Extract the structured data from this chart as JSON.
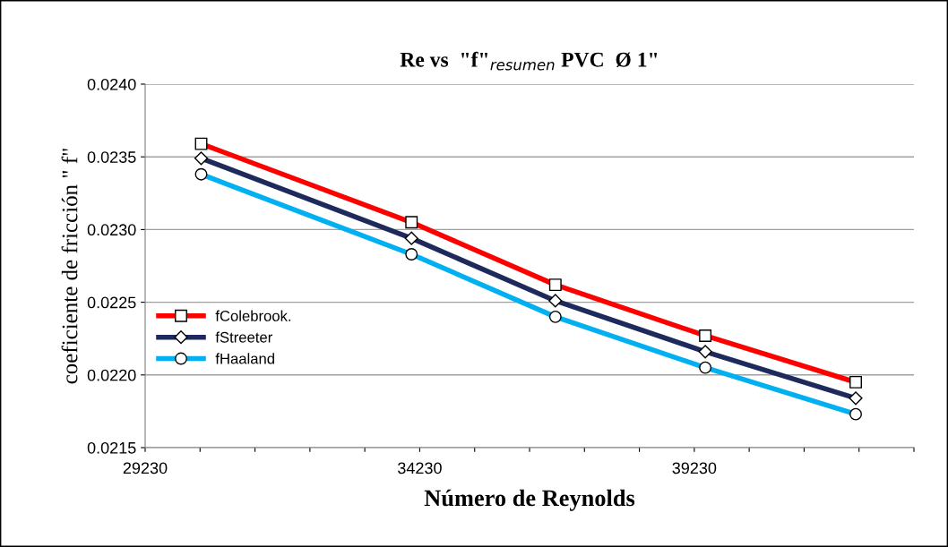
{
  "chart_data": {
    "type": "line",
    "title": "Re vs  \"f\"$_{resumen}$ PVC  Ø 1\"",
    "xlabel": "Número de Reynolds",
    "ylabel": "coeficiente de fricción \" f\"",
    "x": [
      30250,
      34080,
      36700,
      39430,
      42170
    ],
    "series": [
      {
        "name": "fColebrook.",
        "color": "#ff0000",
        "marker": "square",
        "values": [
          0.02359,
          0.02305,
          0.02262,
          0.02227,
          0.02195
        ]
      },
      {
        "name": "fStreeter",
        "color": "#1f2a5c",
        "marker": "diamond",
        "values": [
          0.02349,
          0.02294,
          0.02251,
          0.02216,
          0.02184
        ]
      },
      {
        "name": "fHaaland",
        "color": "#00b0f0",
        "marker": "circle",
        "values": [
          0.02338,
          0.02283,
          0.0224,
          0.02205,
          0.02173
        ]
      }
    ],
    "xlim": [
      29230,
      43230
    ],
    "xticks": [
      29230,
      {
        "value": 30230,
        "label": null
      },
      {
        "value": 31230,
        "label": null
      },
      {
        "value": 32230,
        "label": null
      },
      {
        "value": 33230,
        "label": null
      },
      34230,
      {
        "value": 35230,
        "label": null
      },
      {
        "value": 36230,
        "label": null
      },
      {
        "value": 37230,
        "label": null
      },
      {
        "value": 38230,
        "label": null
      },
      39230,
      {
        "value": 40230,
        "label": null
      },
      {
        "value": 41230,
        "label": null
      },
      {
        "value": 42230,
        "label": null
      },
      {
        "value": 43230,
        "label": null
      }
    ],
    "ylim": [
      0.0215,
      0.024
    ],
    "yticks": [
      {
        "value": 0.0215,
        "label": "0.0215"
      },
      {
        "value": 0.022,
        "label": "0.0220"
      },
      {
        "value": 0.0225,
        "label": "0.0225"
      },
      {
        "value": 0.023,
        "label": "0.0230"
      },
      {
        "value": 0.0235,
        "label": "0.0235"
      },
      {
        "value": 0.024,
        "label": "0.0240"
      }
    ],
    "grid": "y",
    "legend": "center left",
    "line_style": "solid"
  }
}
